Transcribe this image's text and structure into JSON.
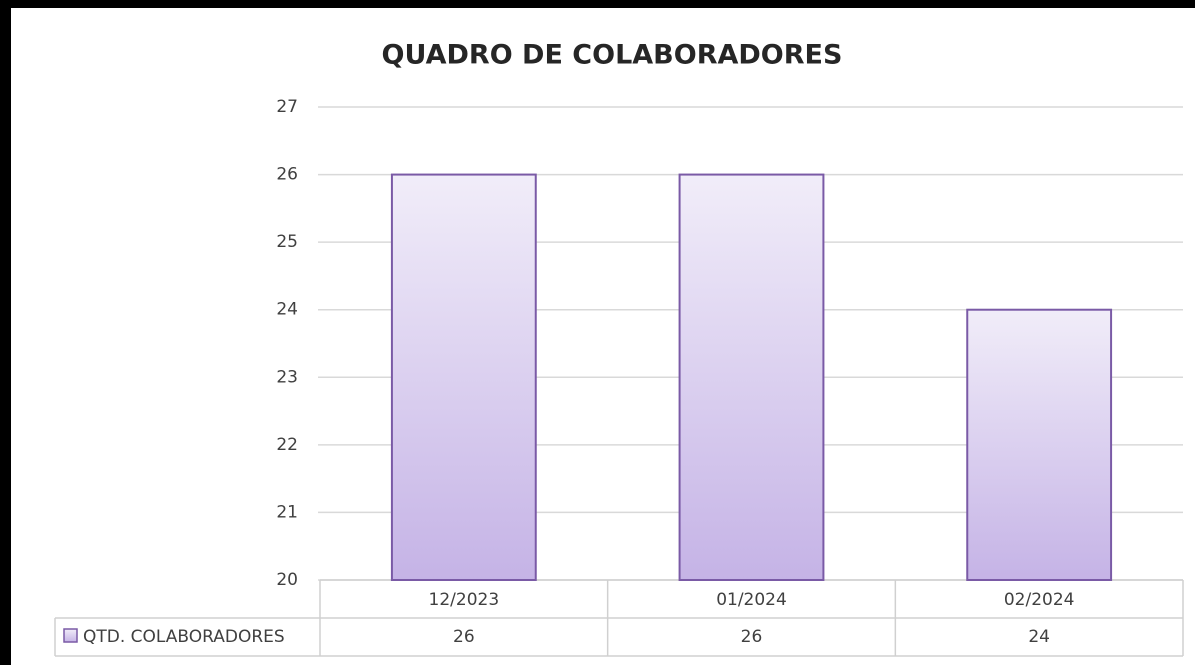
{
  "chart_data": {
    "type": "bar",
    "title": "QUADRO DE COLABORADORES",
    "categories": [
      "12/2023",
      "01/2024",
      "02/2024"
    ],
    "series": [
      {
        "name": "QTD. COLABORADORES",
        "color": "#c5b3e6",
        "values": [
          26,
          26,
          24
        ]
      }
    ],
    "ylim": [
      20,
      27
    ],
    "yticks": [
      20,
      21,
      22,
      23,
      24,
      25,
      26,
      27
    ],
    "grid": true
  }
}
